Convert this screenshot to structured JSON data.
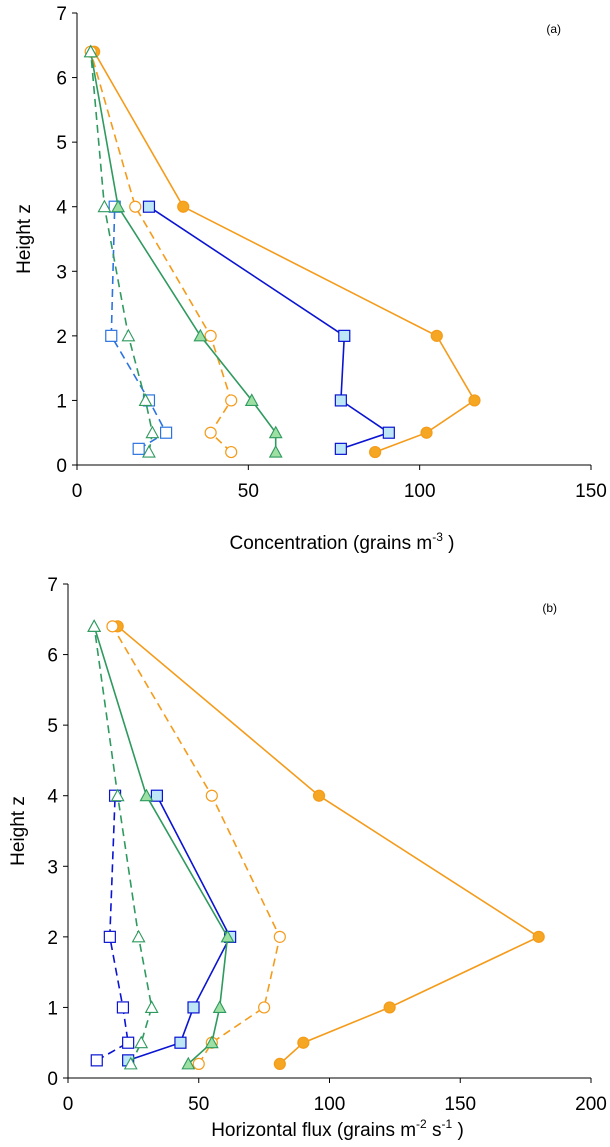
{
  "chart_data": [
    {
      "type": "line",
      "panel_label": "(a)",
      "xlabel_parts": [
        "Concentration (grains m",
        "-3",
        " )"
      ],
      "ylabel": "Height z",
      "xlim": [
        0,
        150
      ],
      "ylim": [
        0,
        7
      ],
      "x_ticks": [
        "0",
        "50",
        "100",
        "150"
      ],
      "y_ticks": [
        "0",
        "1",
        "2",
        "3",
        "4",
        "5",
        "6",
        "7"
      ],
      "grid": false,
      "series": [
        {
          "color": "#f59b1a",
          "marker": "circle",
          "filled": true,
          "dashed": false,
          "points": [
            [
              87,
              0.2
            ],
            [
              102,
              0.5
            ],
            [
              116,
              1.0
            ],
            [
              105,
              2.0
            ],
            [
              31,
              4.0
            ],
            [
              5,
              6.4
            ]
          ]
        },
        {
          "color": "#f59b1a",
          "marker": "circle",
          "filled": false,
          "dashed": true,
          "points": [
            [
              45,
              0.2
            ],
            [
              39,
              0.5
            ],
            [
              45,
              1.0
            ],
            [
              39,
              2.0
            ],
            [
              17,
              4.0
            ],
            [
              4,
              6.4
            ]
          ]
        },
        {
          "color": "#0a14d2",
          "marker": "square",
          "filled": true,
          "dashed": false,
          "points": [
            [
              77,
              0.25
            ],
            [
              91,
              0.5
            ],
            [
              77,
              1.0
            ],
            [
              78,
              2.0
            ],
            [
              21,
              4.0
            ]
          ]
        },
        {
          "color": "#2b74e0",
          "marker": "square",
          "filled": false,
          "dashed": true,
          "points": [
            [
              18,
              0.25
            ],
            [
              26,
              0.5
            ],
            [
              21,
              1.0
            ],
            [
              10,
              2.0
            ],
            [
              11,
              4.0
            ]
          ]
        },
        {
          "color": "#2f9a5f",
          "marker": "triangle",
          "filled": true,
          "dashed": false,
          "points": [
            [
              58,
              0.2
            ],
            [
              58,
              0.5
            ],
            [
              51,
              1.0
            ],
            [
              36,
              2.0
            ],
            [
              12,
              4.0
            ],
            [
              4,
              6.4
            ]
          ]
        },
        {
          "color": "#2f9a5f",
          "marker": "triangle",
          "filled": false,
          "dashed": true,
          "points": [
            [
              21,
              0.2
            ],
            [
              22,
              0.5
            ],
            [
              20,
              1.0
            ],
            [
              15,
              2.0
            ],
            [
              8,
              4.0
            ],
            [
              4,
              6.4
            ]
          ]
        }
      ]
    },
    {
      "type": "line",
      "panel_label": "(b)",
      "xlabel_parts": [
        "Horizontal flux (grains m",
        "-2",
        " s",
        "-1",
        " )"
      ],
      "ylabel": "Height z",
      "xlim": [
        0,
        200
      ],
      "ylim": [
        0,
        7
      ],
      "x_ticks": [
        "0",
        "50",
        "100",
        "150",
        "200"
      ],
      "y_ticks": [
        "0",
        "1",
        "2",
        "3",
        "4",
        "5",
        "6",
        "7"
      ],
      "grid": false,
      "series": [
        {
          "color": "#f59b1a",
          "marker": "circle",
          "filled": true,
          "dashed": false,
          "points": [
            [
              81,
              0.2
            ],
            [
              90,
              0.5
            ],
            [
              123,
              1.0
            ],
            [
              180,
              2.0
            ],
            [
              96,
              4.0
            ],
            [
              19,
              6.4
            ]
          ]
        },
        {
          "color": "#f59b1a",
          "marker": "circle",
          "filled": false,
          "dashed": true,
          "points": [
            [
              50,
              0.2
            ],
            [
              55,
              0.5
            ],
            [
              75,
              1.0
            ],
            [
              81,
              2.0
            ],
            [
              55,
              4.0
            ],
            [
              17,
              6.4
            ]
          ]
        },
        {
          "color": "#0a14d2",
          "marker": "square",
          "filled": true,
          "dashed": false,
          "points": [
            [
              23,
              0.25
            ],
            [
              43,
              0.5
            ],
            [
              48,
              1.0
            ],
            [
              62,
              2.0
            ],
            [
              34,
              4.0
            ]
          ]
        },
        {
          "color": "#0a14d2",
          "marker": "square",
          "filled": false,
          "dashed": true,
          "points": [
            [
              11,
              0.25
            ],
            [
              23,
              0.5
            ],
            [
              21,
              1.0
            ],
            [
              16,
              2.0
            ],
            [
              18,
              4.0
            ]
          ]
        },
        {
          "color": "#2f9a5f",
          "marker": "triangle",
          "filled": true,
          "dashed": false,
          "points": [
            [
              46,
              0.2
            ],
            [
              55,
              0.5
            ],
            [
              58,
              1.0
            ],
            [
              61,
              2.0
            ],
            [
              30,
              4.0
            ],
            [
              10,
              6.4
            ]
          ]
        },
        {
          "color": "#2f9a5f",
          "marker": "triangle",
          "filled": false,
          "dashed": true,
          "points": [
            [
              24,
              0.2
            ],
            [
              28,
              0.5
            ],
            [
              32,
              1.0
            ],
            [
              27,
              2.0
            ],
            [
              19,
              4.0
            ],
            [
              10,
              6.4
            ]
          ]
        }
      ]
    }
  ]
}
